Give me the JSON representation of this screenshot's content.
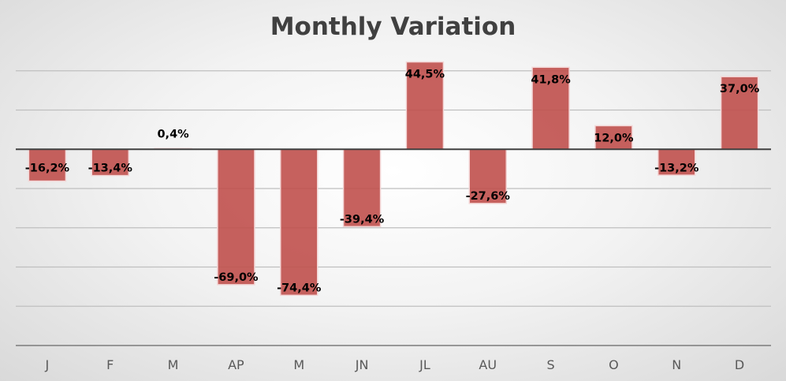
{
  "chart_data": {
    "type": "bar",
    "title": "Monthly Variation",
    "categories": [
      "J",
      "F",
      "M",
      "AP",
      "M",
      "JN",
      "JL",
      "AU",
      "S",
      "O",
      "N",
      "D"
    ],
    "series": [
      {
        "values": [
          -16.2,
          -13.4,
          0.4,
          -69.0,
          -74.4,
          -39.4,
          44.5,
          -27.6,
          41.8,
          12.0,
          -13.2,
          37.0
        ],
        "labels": [
          "-16,2%",
          "-13,4%",
          "0,4%",
          "-69,0%",
          "-74,4%",
          "-39,4%",
          "44,5%",
          "-27,6%",
          "41,8%",
          "12,0%",
          "-13,2%",
          "37,0%"
        ]
      }
    ],
    "ylim": [
      -100,
      60
    ],
    "grid": true,
    "xlabel": "",
    "ylabel": "",
    "colors": {
      "bar": "#c0504d",
      "bar_edge": "#f3d6d6",
      "grid": "#bfbfbf",
      "axis": "#404040",
      "label": "#000000",
      "tick": "#595959"
    }
  }
}
